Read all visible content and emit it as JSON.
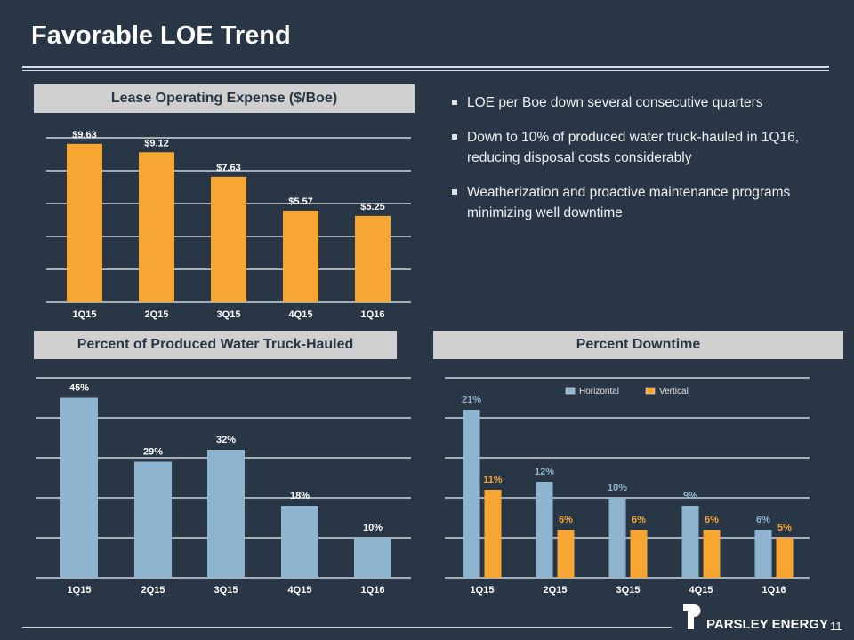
{
  "title": "Favorable LOE Trend",
  "bullets": [
    "LOE per Boe down several consecutive quarters",
    "Down to 10% of produced water truck-hauled in 1Q16, reducing disposal costs considerably",
    "Weatherization and proactive maintenance programs minimizing well downtime"
  ],
  "footer": {
    "logo_text": "PARSLEY ENERGY",
    "page_number": "11"
  },
  "colors": {
    "orange": "#f7a533",
    "blue": "#8fb4cf",
    "background": "#283646"
  },
  "chart_data": [
    {
      "type": "bar",
      "title": "Lease Operating Expense ($/Boe)",
      "categories": [
        "1Q15",
        "2Q15",
        "3Q15",
        "4Q15",
        "1Q16"
      ],
      "values": [
        9.63,
        9.12,
        7.63,
        5.57,
        5.25
      ],
      "data_labels": [
        "$9.63",
        "$9.12",
        "$7.63",
        "$5.57",
        "$5.25"
      ],
      "ylim": [
        0,
        10
      ],
      "grid": true,
      "color": "#f7a533"
    },
    {
      "type": "bar",
      "title": "Percent of Produced Water Truck-Hauled",
      "categories": [
        "1Q15",
        "2Q15",
        "3Q15",
        "4Q15",
        "1Q16"
      ],
      "values": [
        45,
        29,
        32,
        18,
        10
      ],
      "data_labels": [
        "45%",
        "29%",
        "32%",
        "18%",
        "10%"
      ],
      "ylim": [
        0,
        50
      ],
      "grid": true,
      "color": "#8fb4cf"
    },
    {
      "type": "bar",
      "title": "Percent Downtime",
      "categories": [
        "1Q15",
        "2Q15",
        "3Q15",
        "4Q15",
        "1Q16"
      ],
      "series": [
        {
          "name": "Horizontal",
          "values": [
            21,
            12,
            10,
            9,
            6
          ],
          "data_labels": [
            "21%",
            "12%",
            "10%",
            "9%",
            "6%"
          ],
          "color": "#8fb4cf"
        },
        {
          "name": "Vertical",
          "values": [
            11,
            6,
            6,
            6,
            5
          ],
          "data_labels": [
            "11%",
            "6%",
            "6%",
            "6%",
            "5%"
          ],
          "color": "#f7a533"
        }
      ],
      "ylim": [
        0,
        25
      ],
      "grid": true,
      "legend": "top"
    }
  ]
}
